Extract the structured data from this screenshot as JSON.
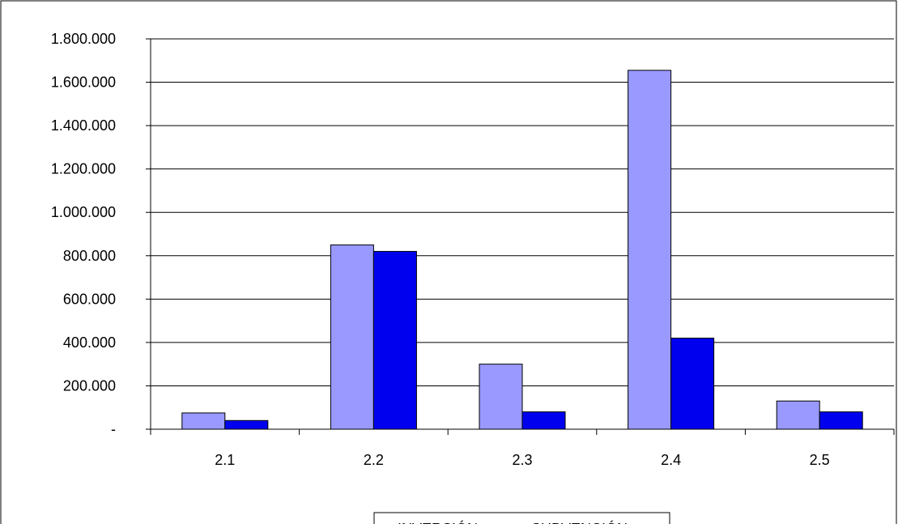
{
  "chart_data": {
    "type": "bar",
    "categories": [
      "2.1",
      "2.2",
      "2.3",
      "2.4",
      "2.5"
    ],
    "series": [
      {
        "name": "INVERSIÓN",
        "color": "#9999ff",
        "values": [
          75000,
          850000,
          300000,
          1655000,
          130000
        ]
      },
      {
        "name": "SUBVENCIÓN",
        "color": "#0000ee",
        "values": [
          40000,
          820000,
          80000,
          420000,
          80000
        ]
      }
    ],
    "yticks": [
      "-",
      "200.000",
      "400.000",
      "600.000",
      "800.000",
      "1.000.000",
      "1.200.000",
      "1.400.000",
      "1.600.000",
      "1.800.000"
    ],
    "ylim": [
      0,
      1800000
    ],
    "grid": true,
    "legend": "bottom",
    "title": "",
    "xlabel": "",
    "ylabel": ""
  }
}
